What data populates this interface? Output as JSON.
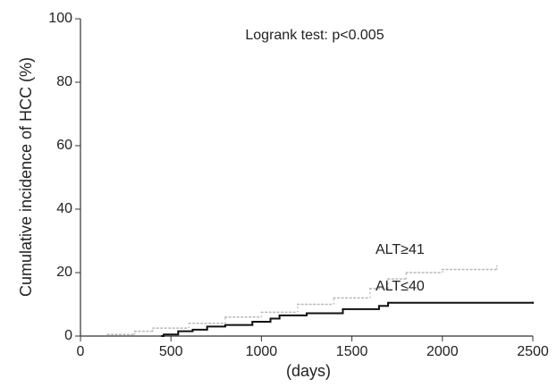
{
  "chart_data": {
    "type": "step",
    "annotation": "Logrank test: p<0.005",
    "xlabel": "(days)",
    "ylabel": "Cumulative incidence of HCC (%)",
    "xlim": [
      0,
      2500
    ],
    "xticks": [
      0,
      500,
      1000,
      1500,
      2000,
      2500
    ],
    "ylim": [
      0,
      100
    ],
    "yticks": [
      0,
      20,
      40,
      60,
      80,
      100
    ],
    "series": [
      {
        "name": "ALT≥41",
        "color": "#b8b8b8",
        "linestyle": "dotted",
        "x": [
          150,
          300,
          400,
          600,
          800,
          1000,
          1200,
          1400,
          1600,
          1700,
          1800,
          2000,
          2300
        ],
        "values": [
          0.5,
          1.5,
          2.5,
          4,
          6,
          7.5,
          10,
          12,
          15,
          18,
          20,
          21,
          22
        ]
      },
      {
        "name": "ALT≤40",
        "color": "#111111",
        "linestyle": "solid",
        "x": [
          450,
          460,
          540,
          620,
          700,
          800,
          950,
          1050,
          1100,
          1250,
          1450,
          1650,
          1700,
          2500
        ],
        "values": [
          0,
          0.5,
          1.5,
          2,
          3,
          3.5,
          4.5,
          5.5,
          6.5,
          7.2,
          8.5,
          9.5,
          10.5,
          10.5
        ]
      }
    ]
  }
}
